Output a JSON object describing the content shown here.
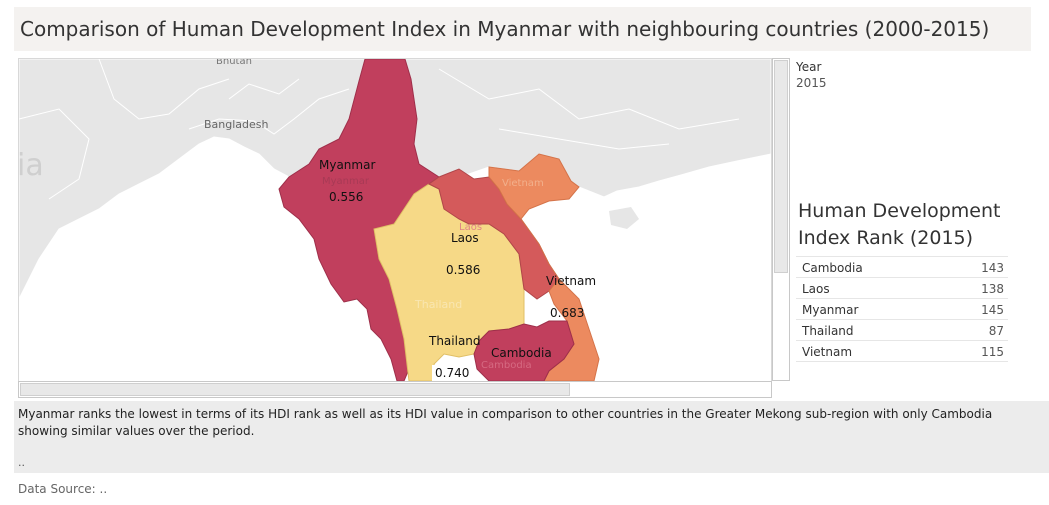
{
  "title": "Comparison of Human Development Index in Myanmar with neighbouring countries (2000-2015)",
  "year_filter": {
    "label": "Year",
    "value": "2015"
  },
  "map": {
    "background_labels": {
      "bhutan": "Bhutan",
      "bangladesh": "Bangladesh",
      "partial": "ia"
    },
    "colors": {
      "myanmar": "#c13f5d",
      "laos": "#d45a5b",
      "vietnam": "#ec8a5f",
      "thailand": "#f6d987",
      "cambodia": "#c13f5d",
      "land": "#e6e6e6",
      "sea": "#ffffff"
    },
    "countries": [
      {
        "name": "Myanmar",
        "ghost": "Myanmar",
        "hdi": "0.556"
      },
      {
        "name": "Laos",
        "ghost": "Laos",
        "hdi": "0.586"
      },
      {
        "name": "Vietnam",
        "ghost": "Vietnam",
        "hdi": "0.683"
      },
      {
        "name": "Thailand",
        "ghost": "Thailand",
        "hdi": "0.740"
      },
      {
        "name": "Cambodia",
        "ghost": "Cambodia",
        "hdi": ""
      }
    ]
  },
  "rank_panel": {
    "title_line1": "Human Development",
    "title_line2": "Index Rank (2015)",
    "rows": [
      {
        "country": "Cambodia",
        "rank": "143"
      },
      {
        "country": "Laos",
        "rank": "138"
      },
      {
        "country": "Myanmar",
        "rank": "145"
      },
      {
        "country": "Thailand",
        "rank": "87"
      },
      {
        "country": "Vietnam",
        "rank": "115"
      }
    ]
  },
  "description": {
    "text": "Myanmar ranks the lowest in terms of its HDI rank as well as its HDI value in comparison to other countries in the Greater Mekong sub-region with only Cambodia showing similar values over the period.",
    "dots": ".."
  },
  "source": "Data Source: .."
}
